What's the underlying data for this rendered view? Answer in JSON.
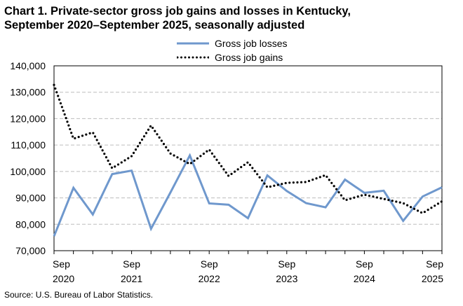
{
  "header": {
    "title_line1": "Chart 1. Private-sector gross job gains and losses in Kentucky,",
    "title_line2": "September 2020–September 2025, seasonally adjusted"
  },
  "source": "Source: U.S. Bureau of Labor Statistics.",
  "colors": {
    "losses": "#6f98cd",
    "gains": "#000000",
    "grid": "#bdbdbd"
  },
  "chart_data": {
    "type": "line",
    "ylim": [
      70000,
      140000
    ],
    "yticks": [
      "70,000",
      "80,000",
      "90,000",
      "100,000",
      "110,000",
      "120,000",
      "130,000",
      "140,000"
    ],
    "ytick_values": [
      70000,
      80000,
      90000,
      100000,
      110000,
      120000,
      130000,
      140000
    ],
    "xticks": [
      {
        "index": 0,
        "month": "Sep",
        "year": "2020"
      },
      {
        "index": 4,
        "month": "Sep",
        "year": "2021"
      },
      {
        "index": 8,
        "month": "Sep",
        "year": "2022"
      },
      {
        "index": 12,
        "month": "Sep",
        "year": "2023"
      },
      {
        "index": 16,
        "month": "Sep",
        "year": "2024"
      },
      {
        "index": 20,
        "month": "Sep",
        "year": "2025"
      }
    ],
    "x": [
      "Sep 2020",
      "Dec 2020",
      "Mar 2021",
      "Jun 2021",
      "Sep 2021",
      "Dec 2021",
      "Mar 2022",
      "Jun 2022",
      "Sep 2022",
      "Dec 2022",
      "Mar 2023",
      "Jun 2023",
      "Sep 2023",
      "Dec 2023",
      "Mar 2024",
      "Jun 2024",
      "Sep 2024",
      "Dec 2024",
      "Mar 2025",
      "Jun 2025",
      "Sep 2025"
    ],
    "grid": true,
    "legend_position": "top-center",
    "series": [
      {
        "name": "Gross job losses",
        "style": "solid",
        "values": [
          75500,
          93800,
          83700,
          99000,
          100300,
          78300,
          92000,
          106100,
          87900,
          87400,
          82300,
          98500,
          92600,
          88000,
          86400,
          96900,
          91900,
          92700,
          81300,
          90500,
          94000
        ]
      },
      {
        "name": "Gross job gains",
        "style": "dotted",
        "values": [
          132800,
          112400,
          114800,
          101200,
          105800,
          117400,
          106800,
          102800,
          108300,
          98300,
          103500,
          94000,
          95700,
          96000,
          98600,
          89100,
          91200,
          89600,
          88000,
          84200,
          88700
        ]
      }
    ]
  }
}
